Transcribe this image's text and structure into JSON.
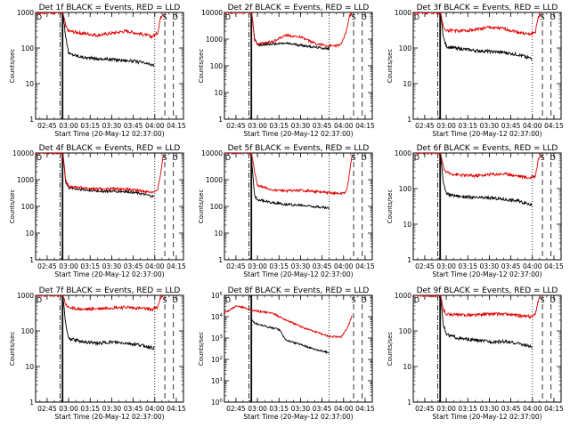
{
  "figure": {
    "xlabel": "Start Time (20-May-12 02:37:00)",
    "ylabel": "Counts/sec",
    "x_ticks": [
      "02:45",
      "03:00",
      "03:15",
      "03:30",
      "03:45",
      "04:00",
      "04:15"
    ],
    "series_colors": {
      "events": "#000000",
      "lld": "#e00000"
    },
    "markers": [
      "D",
      "S",
      "D"
    ]
  },
  "chart_data": [
    {
      "type": "line",
      "title": "Det 1f BLACK = Events, RED = LLD",
      "ylim": [
        1,
        1000
      ],
      "yscale": "log",
      "y_ticks": [
        "1",
        "10",
        "100",
        "1000"
      ],
      "xlim": [
        "02:37",
        "04:20"
      ],
      "vlines": {
        "solid": [
          "02:55:30",
          "02:56"
        ],
        "dashdot": [
          "02:54"
        ],
        "dotted": [
          "04:00"
        ],
        "dashed": [
          "04:07",
          "04:13"
        ]
      },
      "series": [
        {
          "key": "black",
          "x": [
            "02:56",
            "02:58",
            "03:00",
            "03:10",
            "03:20",
            "03:30",
            "03:40",
            "03:50",
            "04:00"
          ],
          "values": [
            1000,
            200,
            70,
            55,
            50,
            48,
            45,
            40,
            32
          ]
        },
        {
          "key": "red",
          "x": [
            "02:37",
            "02:50",
            "02:56",
            "02:58",
            "03:00",
            "03:10",
            "03:20",
            "03:30",
            "03:40",
            "03:50",
            "03:58",
            "04:02",
            "04:04",
            "04:06"
          ],
          "values": [
            1000,
            1000,
            1000,
            400,
            300,
            260,
            230,
            260,
            300,
            250,
            210,
            260,
            700,
            1000
          ]
        }
      ]
    },
    {
      "type": "line",
      "title": "Det 2f BLACK = Events, RED = LLD",
      "ylim": [
        1,
        10000
      ],
      "yscale": "log",
      "y_ticks": [
        "1",
        "10",
        "100",
        "1000",
        "10000"
      ],
      "xlim": [
        "02:37",
        "04:20"
      ],
      "vlines": {
        "solid": [
          "02:55:30",
          "02:56"
        ],
        "dashdot": [
          "02:54"
        ],
        "dotted": [
          "03:50"
        ],
        "dashed": [
          "04:07",
          "04:13"
        ]
      },
      "series": [
        {
          "key": "black",
          "x": [
            "02:56",
            "02:58",
            "03:00",
            "03:10",
            "03:20",
            "03:30",
            "03:40",
            "03:50"
          ],
          "values": [
            10000,
            1000,
            600,
            650,
            700,
            600,
            500,
            430
          ]
        },
        {
          "key": "red",
          "x": [
            "02:37",
            "02:50",
            "02:56",
            "02:58",
            "03:00",
            "03:10",
            "03:20",
            "03:30",
            "03:40",
            "03:50",
            "03:58",
            "04:02",
            "04:04",
            "04:06"
          ],
          "values": [
            10000,
            10000,
            10000,
            1000,
            650,
            800,
            1400,
            1200,
            700,
            550,
            600,
            2000,
            7000,
            10000
          ]
        }
      ]
    },
    {
      "type": "line",
      "title": "Det 3f BLACK = Events, RED = LLD",
      "ylim": [
        1,
        1000
      ],
      "yscale": "log",
      "y_ticks": [
        "1",
        "10",
        "100",
        "1000"
      ],
      "xlim": [
        "02:37",
        "04:20"
      ],
      "vlines": {
        "solid": [
          "02:55:30",
          "02:56"
        ],
        "dashdot": [
          "02:54"
        ],
        "dotted": [
          "04:00"
        ],
        "dashed": [
          "04:07",
          "04:13"
        ]
      },
      "series": [
        {
          "key": "black",
          "x": [
            "02:56",
            "02:58",
            "03:00",
            "03:10",
            "03:20",
            "03:30",
            "03:40",
            "03:50",
            "04:00"
          ],
          "values": [
            1000,
            200,
            110,
            95,
            85,
            80,
            75,
            65,
            50
          ]
        },
        {
          "key": "red",
          "x": [
            "02:37",
            "02:50",
            "02:56",
            "02:58",
            "03:00",
            "03:10",
            "03:20",
            "03:30",
            "03:40",
            "03:50",
            "03:58",
            "04:02",
            "04:04",
            "04:06"
          ],
          "values": [
            1000,
            1000,
            1000,
            400,
            320,
            300,
            330,
            380,
            350,
            280,
            240,
            280,
            700,
            1000
          ]
        }
      ]
    },
    {
      "type": "line",
      "title": "Det 4f BLACK = Events, RED = LLD",
      "ylim": [
        1,
        10000
      ],
      "yscale": "log",
      "y_ticks": [
        "1",
        "10",
        "100",
        "1000",
        "10000"
      ],
      "xlim": [
        "02:37",
        "04:20"
      ],
      "vlines": {
        "solid": [
          "02:55:30",
          "02:56"
        ],
        "dashdot": [
          "02:54"
        ],
        "dotted": [
          "04:00"
        ],
        "dashed": [
          "04:07",
          "04:13"
        ]
      },
      "series": [
        {
          "key": "black",
          "x": [
            "02:56",
            "02:58",
            "03:00",
            "03:10",
            "03:20",
            "03:30",
            "03:40",
            "03:50",
            "04:00"
          ],
          "values": [
            10000,
            800,
            500,
            420,
            380,
            370,
            360,
            300,
            230
          ]
        },
        {
          "key": "red",
          "x": [
            "02:37",
            "02:50",
            "02:56",
            "02:58",
            "03:00",
            "03:10",
            "03:20",
            "03:30",
            "03:40",
            "03:50",
            "03:58",
            "04:02",
            "04:04",
            "04:06"
          ],
          "values": [
            10000,
            10000,
            10000,
            900,
            580,
            500,
            450,
            460,
            440,
            380,
            340,
            400,
            1500,
            10000
          ]
        }
      ]
    },
    {
      "type": "line",
      "title": "Det 5f BLACK = Events, RED = LLD",
      "ylim": [
        1,
        10000
      ],
      "yscale": "log",
      "y_ticks": [
        "1",
        "10",
        "100",
        "1000",
        "10000"
      ],
      "xlim": [
        "02:37",
        "04:20"
      ],
      "vlines": {
        "solid": [
          "02:55:30",
          "02:56"
        ],
        "dashdot": [
          "02:54"
        ],
        "dotted": [
          "03:50"
        ],
        "dashed": [
          "04:07",
          "04:13"
        ]
      },
      "series": [
        {
          "key": "black",
          "x": [
            "02:56",
            "02:58",
            "03:00",
            "03:10",
            "03:20",
            "03:30",
            "03:40",
            "03:50"
          ],
          "values": [
            5000,
            250,
            180,
            140,
            120,
            110,
            100,
            85
          ]
        },
        {
          "key": "red",
          "x": [
            "02:37",
            "02:50",
            "02:56",
            "02:58",
            "03:00",
            "03:10",
            "03:20",
            "03:30",
            "03:40",
            "03:50",
            "03:58",
            "04:02",
            "04:04",
            "04:06"
          ],
          "values": [
            10000,
            10000,
            10000,
            2000,
            600,
            420,
            380,
            400,
            360,
            320,
            300,
            350,
            1500,
            10000
          ]
        }
      ]
    },
    {
      "type": "line",
      "title": "Det 6f BLACK = Events, RED = LLD",
      "ylim": [
        1,
        1000
      ],
      "yscale": "log",
      "y_ticks": [
        "1",
        "10",
        "100",
        "1000"
      ],
      "xlim": [
        "02:37",
        "04:20"
      ],
      "vlines": {
        "solid": [
          "02:55:30",
          "02:56"
        ],
        "dashdot": [
          "02:54"
        ],
        "dotted": [
          "04:00"
        ],
        "dashed": [
          "04:07",
          "04:13"
        ]
      },
      "series": [
        {
          "key": "black",
          "x": [
            "02:56",
            "02:58",
            "03:00",
            "03:10",
            "03:20",
            "03:30",
            "03:40",
            "03:50",
            "04:00"
          ],
          "values": [
            1000,
            150,
            70,
            60,
            55,
            55,
            50,
            45,
            35
          ]
        },
        {
          "key": "red",
          "x": [
            "02:37",
            "02:50",
            "02:56",
            "02:58",
            "03:00",
            "03:10",
            "03:20",
            "03:30",
            "03:40",
            "03:50",
            "03:58",
            "04:02",
            "04:04",
            "04:06"
          ],
          "values": [
            1000,
            1000,
            1000,
            400,
            280,
            240,
            230,
            250,
            260,
            230,
            200,
            230,
            600,
            1000
          ]
        }
      ]
    },
    {
      "type": "line",
      "title": "Det 7f BLACK = Events, RED = LLD",
      "ylim": [
        1,
        1000
      ],
      "yscale": "log",
      "y_ticks": [
        "1",
        "10",
        "100",
        "1000"
      ],
      "xlim": [
        "02:37",
        "04:20"
      ],
      "vlines": {
        "solid": [
          "02:55:30",
          "02:56"
        ],
        "dashdot": [
          "02:54"
        ],
        "dotted": [
          "04:00"
        ],
        "dashed": [
          "04:07",
          "04:13"
        ]
      },
      "series": [
        {
          "key": "black",
          "x": [
            "02:56",
            "02:58",
            "03:00",
            "03:10",
            "03:20",
            "03:30",
            "03:40",
            "03:50",
            "04:00"
          ],
          "values": [
            1000,
            150,
            60,
            50,
            45,
            48,
            45,
            40,
            32
          ]
        },
        {
          "key": "red",
          "x": [
            "02:37",
            "02:50",
            "02:56",
            "02:58",
            "03:00",
            "03:10",
            "03:20",
            "03:30",
            "03:40",
            "03:50",
            "03:58",
            "04:02",
            "04:04",
            "04:06"
          ],
          "values": [
            1000,
            1000,
            1000,
            550,
            450,
            400,
            420,
            450,
            460,
            430,
            400,
            450,
            900,
            1000
          ]
        }
      ]
    },
    {
      "type": "line",
      "title": "Det 8f BLACK = Events, RED = LLD",
      "ylim": [
        1,
        100000
      ],
      "yscale": "log",
      "y_ticks": [
        "10^0",
        "10^1",
        "10^2",
        "10^3",
        "10^4",
        "10^5"
      ],
      "xlim": [
        "02:37",
        "04:20"
      ],
      "vlines": {
        "solid": [
          "02:55:30",
          "02:56"
        ],
        "dashdot": [
          "02:54"
        ],
        "dotted": [
          "03:50"
        ],
        "dashed": [
          "04:07",
          "04:13"
        ]
      },
      "series": [
        {
          "key": "black",
          "x": [
            "02:56",
            "02:58",
            "03:00",
            "03:10",
            "03:15",
            "03:20",
            "03:30",
            "03:40",
            "03:50"
          ],
          "values": [
            8000,
            5000,
            4500,
            3000,
            2500,
            800,
            500,
            300,
            200
          ]
        },
        {
          "key": "red",
          "x": [
            "02:37",
            "02:45",
            "02:50",
            "02:56",
            "03:00",
            "03:10",
            "03:20",
            "03:30",
            "03:40",
            "03:50",
            "03:58",
            "04:02",
            "04:04",
            "04:06"
          ],
          "values": [
            15000,
            30000,
            28000,
            20000,
            18000,
            15000,
            7000,
            3500,
            2000,
            1200,
            1100,
            2500,
            5000,
            12000
          ]
        }
      ]
    },
    {
      "type": "line",
      "title": "Det 9f BLACK = Events, RED = LLD",
      "ylim": [
        1,
        1000
      ],
      "yscale": "log",
      "y_ticks": [
        "1",
        "10",
        "100",
        "1000"
      ],
      "xlim": [
        "02:37",
        "04:20"
      ],
      "vlines": {
        "solid": [
          "02:55:30",
          "02:56"
        ],
        "dashdot": [
          "02:54"
        ],
        "dotted": [
          "04:00"
        ],
        "dashed": [
          "04:07",
          "04:13"
        ]
      },
      "series": [
        {
          "key": "black",
          "x": [
            "02:56",
            "02:58",
            "03:00",
            "03:10",
            "03:20",
            "03:30",
            "03:40",
            "03:50",
            "04:00"
          ],
          "values": [
            1000,
            150,
            80,
            60,
            55,
            50,
            50,
            45,
            35
          ]
        },
        {
          "key": "red",
          "x": [
            "02:37",
            "02:50",
            "02:56",
            "02:58",
            "03:00",
            "03:10",
            "03:20",
            "03:30",
            "03:40",
            "03:50",
            "03:58",
            "04:02",
            "04:04",
            "04:06"
          ],
          "values": [
            1000,
            1000,
            1000,
            400,
            300,
            280,
            280,
            300,
            300,
            270,
            250,
            280,
            700,
            1000
          ]
        }
      ]
    }
  ]
}
